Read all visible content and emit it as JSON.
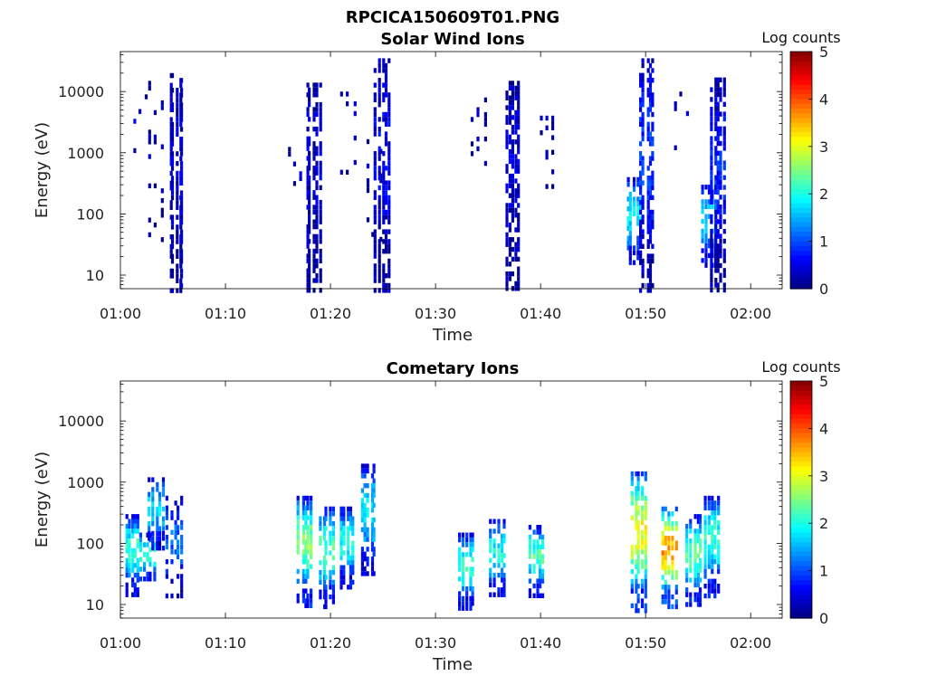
{
  "title": "RPCICA150609T01.PNG",
  "chart_data": [
    {
      "type": "heatmap",
      "title": "Solar Wind Ions",
      "xlabel": "Time",
      "ylabel": "Energy (eV)",
      "y_scale": "log",
      "ylim": [
        6,
        45000
      ],
      "x_ticks": [
        "01:00",
        "01:10",
        "01:20",
        "01:30",
        "01:40",
        "01:50",
        "02:00"
      ],
      "y_ticks": [
        "10",
        "100",
        "1000",
        "10000"
      ],
      "xlim_minutes": [
        0,
        63
      ],
      "colorbar": {
        "label": "Log counts",
        "range": [
          0,
          5
        ],
        "ticks": [
          "0",
          "1",
          "2",
          "3",
          "4",
          "5"
        ]
      },
      "bursts": [
        {
          "t_minutes": 1.8,
          "e_min": 900,
          "e_max": 9000,
          "level": 0.3,
          "density": "sparse"
        },
        {
          "t_minutes": 3.2,
          "e_min": 40,
          "e_max": 15000,
          "level": 0.2,
          "density": "sparse"
        },
        {
          "t_minutes": 5.2,
          "e_min": 6,
          "e_max": 20000,
          "level": 0.3,
          "density": "dense"
        },
        {
          "t_minutes": 16.5,
          "e_min": 150,
          "e_max": 1500,
          "level": 0.2,
          "density": "sparse"
        },
        {
          "t_minutes": 18.2,
          "e_min": 6,
          "e_max": 14000,
          "level": 0.3,
          "density": "dense"
        },
        {
          "t_minutes": 21.5,
          "e_min": 500,
          "e_max": 10000,
          "level": 0.2,
          "density": "sparse"
        },
        {
          "t_minutes": 24.0,
          "e_min": 40,
          "e_max": 2000,
          "level": 0.2,
          "density": "sparse"
        },
        {
          "t_minutes": 24.8,
          "e_min": 6,
          "e_max": 35000,
          "level": 0.4,
          "density": "dense"
        },
        {
          "t_minutes": 34.0,
          "e_min": 500,
          "e_max": 8000,
          "level": 0.2,
          "density": "sparse"
        },
        {
          "t_minutes": 37.2,
          "e_min": 6,
          "e_max": 15000,
          "level": 0.3,
          "density": "dense"
        },
        {
          "t_minutes": 40.5,
          "e_min": 300,
          "e_max": 7000,
          "level": 0.2,
          "density": "sparse"
        },
        {
          "t_minutes": 48.8,
          "e_min": 15,
          "e_max": 400,
          "level": 1.3,
          "density": "dense"
        },
        {
          "t_minutes": 50.0,
          "e_min": 6,
          "e_max": 35000,
          "level": 0.6,
          "density": "dense"
        },
        {
          "t_minutes": 53.2,
          "e_min": 1000,
          "e_max": 10000,
          "level": 0.2,
          "density": "sparse"
        },
        {
          "t_minutes": 55.8,
          "e_min": 15,
          "e_max": 300,
          "level": 1.2,
          "density": "dense"
        },
        {
          "t_minutes": 56.8,
          "e_min": 6,
          "e_max": 17000,
          "level": 0.5,
          "density": "dense"
        }
      ]
    },
    {
      "type": "heatmap",
      "title": "Cometary Ions",
      "xlabel": "Time",
      "ylabel": "Energy (eV)",
      "y_scale": "log",
      "ylim": [
        6,
        45000
      ],
      "x_ticks": [
        "01:00",
        "01:10",
        "01:20",
        "01:30",
        "01:40",
        "01:50",
        "02:00"
      ],
      "y_ticks": [
        "10",
        "100",
        "1000",
        "10000"
      ],
      "xlim_minutes": [
        0,
        63
      ],
      "colorbar": {
        "label": "Log counts",
        "range": [
          0,
          5
        ],
        "ticks": [
          "0",
          "1",
          "2",
          "3",
          "4",
          "5"
        ]
      },
      "bursts": [
        {
          "t_minutes": 1.0,
          "e_min": 15,
          "e_max": 300,
          "level": 1.5,
          "density": "dense"
        },
        {
          "t_minutes": 2.5,
          "e_min": 25,
          "e_max": 150,
          "level": 1.6,
          "density": "dense"
        },
        {
          "t_minutes": 3.3,
          "e_min": 80,
          "e_max": 1200,
          "level": 1.2,
          "density": "dense"
        },
        {
          "t_minutes": 5.0,
          "e_min": 12,
          "e_max": 600,
          "level": 0.8,
          "density": "medium"
        },
        {
          "t_minutes": 17.5,
          "e_min": 10,
          "e_max": 600,
          "level": 1.8,
          "density": "dense"
        },
        {
          "t_minutes": 19.5,
          "e_min": 10,
          "e_max": 400,
          "level": 1.6,
          "density": "dense"
        },
        {
          "t_minutes": 21.5,
          "e_min": 20,
          "e_max": 400,
          "level": 1.4,
          "density": "dense"
        },
        {
          "t_minutes": 23.5,
          "e_min": 30,
          "e_max": 2000,
          "level": 1.3,
          "density": "dense"
        },
        {
          "t_minutes": 32.8,
          "e_min": 8,
          "e_max": 150,
          "level": 1.5,
          "density": "dense"
        },
        {
          "t_minutes": 35.8,
          "e_min": 15,
          "e_max": 250,
          "level": 1.4,
          "density": "dense"
        },
        {
          "t_minutes": 39.5,
          "e_min": 15,
          "e_max": 200,
          "level": 1.6,
          "density": "dense"
        },
        {
          "t_minutes": 49.2,
          "e_min": 8,
          "e_max": 1500,
          "level": 2.2,
          "density": "dense"
        },
        {
          "t_minutes": 52.2,
          "e_min": 10,
          "e_max": 400,
          "level": 2.6,
          "density": "dense"
        },
        {
          "t_minutes": 54.5,
          "e_min": 10,
          "e_max": 300,
          "level": 1.6,
          "density": "dense"
        },
        {
          "t_minutes": 56.2,
          "e_min": 15,
          "e_max": 600,
          "level": 1.5,
          "density": "dense"
        }
      ]
    }
  ]
}
